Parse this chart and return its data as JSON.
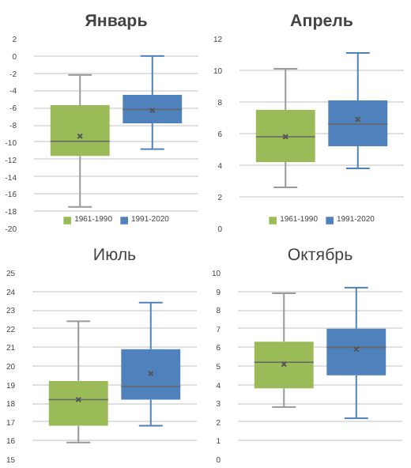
{
  "chart_data": [
    {
      "type": "box",
      "title": "Январь",
      "categories": [
        null
      ],
      "ylim": [
        -20,
        2
      ],
      "yticks": [
        2,
        0,
        -2,
        -4,
        -6,
        -8,
        -10,
        -12,
        -14,
        -16,
        -18,
        -20
      ],
      "grid": "y",
      "legend": "bottom",
      "series": [
        {
          "name": "1961-1990",
          "color": "#9bbb59",
          "boxes": [
            {
              "low": -17.5,
              "q1": -11.6,
              "median": -9.9,
              "q3": -5.7,
              "high": -2.2,
              "mean": -9.3
            }
          ]
        },
        {
          "name": "1991-2020",
          "color": "#4f81bd",
          "boxes": [
            {
              "low": -10.8,
              "q1": -7.8,
              "median": -6.2,
              "q3": -4.5,
              "high": 0.0,
              "mean": -6.3
            }
          ]
        }
      ]
    },
    {
      "type": "box",
      "title": "Апрель",
      "categories": [
        null
      ],
      "ylim": [
        0,
        12
      ],
      "yticks": [
        0,
        2,
        4,
        6,
        8,
        10,
        12
      ],
      "grid": "y",
      "legend": "bottom",
      "series": [
        {
          "name": "1961-1990",
          "color": "#9bbb59",
          "boxes": [
            {
              "low": 2.6,
              "q1": 4.2,
              "median": 5.8,
              "q3": 7.5,
              "high": 10.1,
              "mean": 5.8
            }
          ]
        },
        {
          "name": "1991-2020",
          "color": "#4f81bd",
          "boxes": [
            {
              "low": 3.8,
              "q1": 5.2,
              "median": 6.6,
              "q3": 8.1,
              "high": 11.1,
              "mean": 6.9
            }
          ]
        }
      ]
    },
    {
      "type": "box",
      "title": "Июль",
      "categories": [
        null
      ],
      "ylim": [
        15,
        25
      ],
      "yticks": [
        15,
        16,
        17,
        18,
        19,
        20,
        21,
        22,
        23,
        24,
        25
      ],
      "grid": "y",
      "series": [
        {
          "color": "#9bbb59",
          "boxes": [
            {
              "low": 15.9,
              "q1": 16.8,
              "median": 18.2,
              "q3": 19.2,
              "high": 22.4,
              "mean": 18.2
            }
          ]
        },
        {
          "color": "#4f81bd",
          "boxes": [
            {
              "low": 16.8,
              "q1": 18.2,
              "median": 18.9,
              "q3": 20.9,
              "high": 23.4,
              "mean": 19.6
            }
          ]
        }
      ]
    },
    {
      "type": "box",
      "title": "Октябрь",
      "categories": [
        null
      ],
      "ylim": [
        0,
        10
      ],
      "yticks": [
        0,
        1,
        2,
        3,
        4,
        5,
        6,
        7,
        8,
        9,
        10
      ],
      "grid": "y",
      "series": [
        {
          "color": "#9bbb59",
          "boxes": [
            {
              "low": 2.8,
              "q1": 3.8,
              "median": 5.2,
              "q3": 6.3,
              "high": 8.9,
              "mean": 5.1
            }
          ]
        },
        {
          "color": "#4f81bd",
          "boxes": [
            {
              "low": 2.2,
              "q1": 4.5,
              "median": 6.0,
              "q3": 7.0,
              "high": 9.2,
              "mean": 5.9
            }
          ]
        }
      ]
    }
  ]
}
